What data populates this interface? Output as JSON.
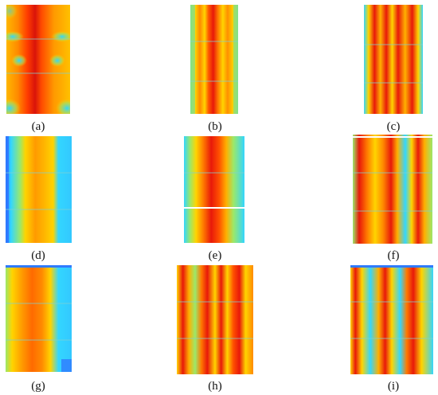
{
  "figure": {
    "panels": [
      {
        "id": "a",
        "label": "(a)"
      },
      {
        "id": "b",
        "label": "(b)"
      },
      {
        "id": "c",
        "label": "(c)"
      },
      {
        "id": "d",
        "label": "(d)"
      },
      {
        "id": "e",
        "label": "(e)"
      },
      {
        "id": "f",
        "label": "(f)"
      },
      {
        "id": "g",
        "label": "(g)"
      },
      {
        "id": "h",
        "label": "(h)"
      },
      {
        "id": "i",
        "label": "(i)"
      }
    ],
    "colormap": {
      "low": "#2f7bff",
      "low_mid": "#33d6ff",
      "mid": "#9be86a",
      "mid_high": "#ffd400",
      "high": "#ff7a00",
      "max": "#e8190a"
    }
  }
}
